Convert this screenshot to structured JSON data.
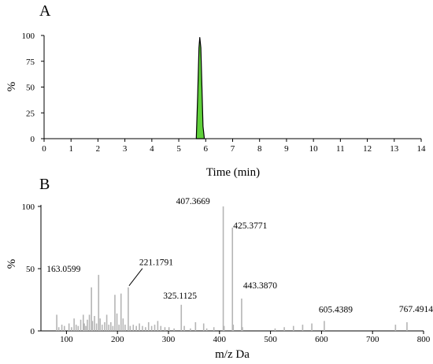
{
  "chart_data": [
    {
      "panel": "A",
      "type": "line",
      "title": "",
      "xlabel": "Time (min)",
      "ylabel": "%",
      "xlim": [
        0,
        14
      ],
      "ylim": [
        0,
        100
      ],
      "xticks": [
        "0",
        "1",
        "2",
        "3",
        "4",
        "5",
        "6",
        "7",
        "8",
        "9",
        "10",
        "11",
        "12",
        "13",
        "14"
      ],
      "yticks": [
        "0",
        "25",
        "50",
        "75",
        "100"
      ],
      "fill_color": "#5fd03a",
      "series": [
        {
          "x": [
            5.65,
            5.7,
            5.75,
            5.78,
            5.82,
            5.86,
            5.9,
            5.95
          ],
          "y": [
            0,
            40,
            88,
            98,
            88,
            50,
            12,
            0
          ]
        }
      ]
    },
    {
      "panel": "B",
      "type": "bar",
      "title": "",
      "xlabel": "m/z Da",
      "ylabel": "%",
      "xlim": [
        50,
        800
      ],
      "ylim": [
        0,
        100
      ],
      "xticks": [
        "100",
        "200",
        "300",
        "400",
        "500",
        "600",
        "700",
        "800"
      ],
      "yticks": [
        "0",
        "50",
        "100"
      ],
      "bar_color": "#b5b5b5",
      "peaks": [
        {
          "mz": 81,
          "intensity": 13
        },
        {
          "mz": 85,
          "intensity": 3
        },
        {
          "mz": 91,
          "intensity": 5
        },
        {
          "mz": 96,
          "intensity": 4
        },
        {
          "mz": 105,
          "intensity": 6
        },
        {
          "mz": 110,
          "intensity": 3
        },
        {
          "mz": 115,
          "intensity": 10
        },
        {
          "mz": 119,
          "intensity": 5
        },
        {
          "mz": 123,
          "intensity": 4
        },
        {
          "mz": 128,
          "intensity": 9
        },
        {
          "mz": 133,
          "intensity": 13
        },
        {
          "mz": 135,
          "intensity": 6
        },
        {
          "mz": 138,
          "intensity": 4
        },
        {
          "mz": 141,
          "intensity": 9
        },
        {
          "mz": 145,
          "intensity": 13
        },
        {
          "mz": 149,
          "intensity": 35
        },
        {
          "mz": 151,
          "intensity": 8
        },
        {
          "mz": 155,
          "intensity": 12
        },
        {
          "mz": 159,
          "intensity": 6
        },
        {
          "mz": 163.0599,
          "intensity": 45
        },
        {
          "mz": 166,
          "intensity": 10
        },
        {
          "mz": 170,
          "intensity": 5
        },
        {
          "mz": 175,
          "intensity": 7
        },
        {
          "mz": 179,
          "intensity": 13
        },
        {
          "mz": 183,
          "intensity": 5
        },
        {
          "mz": 187,
          "intensity": 7
        },
        {
          "mz": 191,
          "intensity": 4
        },
        {
          "mz": 195,
          "intensity": 29
        },
        {
          "mz": 199,
          "intensity": 14
        },
        {
          "mz": 203,
          "intensity": 5
        },
        {
          "mz": 207,
          "intensity": 30
        },
        {
          "mz": 211,
          "intensity": 10
        },
        {
          "mz": 215,
          "intensity": 5
        },
        {
          "mz": 221.1791,
          "intensity": 35
        },
        {
          "mz": 225,
          "intensity": 4
        },
        {
          "mz": 231,
          "intensity": 5
        },
        {
          "mz": 237,
          "intensity": 4
        },
        {
          "mz": 243,
          "intensity": 6
        },
        {
          "mz": 249,
          "intensity": 4
        },
        {
          "mz": 255,
          "intensity": 3
        },
        {
          "mz": 261,
          "intensity": 7
        },
        {
          "mz": 267,
          "intensity": 4
        },
        {
          "mz": 273,
          "intensity": 5
        },
        {
          "mz": 279,
          "intensity": 8
        },
        {
          "mz": 285,
          "intensity": 4
        },
        {
          "mz": 293,
          "intensity": 3
        },
        {
          "mz": 301,
          "intensity": 3
        },
        {
          "mz": 311,
          "intensity": 2
        },
        {
          "mz": 325.1125,
          "intensity": 21
        },
        {
          "mz": 331,
          "intensity": 4
        },
        {
          "mz": 343,
          "intensity": 2
        },
        {
          "mz": 353,
          "intensity": 7
        },
        {
          "mz": 369,
          "intensity": 6
        },
        {
          "mz": 375,
          "intensity": 2
        },
        {
          "mz": 389,
          "intensity": 3
        },
        {
          "mz": 407.3669,
          "intensity": 100
        },
        {
          "mz": 409,
          "intensity": 4
        },
        {
          "mz": 425.3771,
          "intensity": 83
        },
        {
          "mz": 427,
          "intensity": 5
        },
        {
          "mz": 443.387,
          "intensity": 26
        },
        {
          "mz": 445,
          "intensity": 3
        },
        {
          "mz": 509,
          "intensity": 2
        },
        {
          "mz": 527,
          "intensity": 3
        },
        {
          "mz": 545,
          "intensity": 4
        },
        {
          "mz": 563,
          "intensity": 5
        },
        {
          "mz": 581,
          "intensity": 6
        },
        {
          "mz": 605.4389,
          "intensity": 8
        },
        {
          "mz": 745,
          "intensity": 5
        },
        {
          "mz": 767.4914,
          "intensity": 7
        }
      ],
      "annotations": [
        {
          "label": "407.3669",
          "mz": 407.3669
        },
        {
          "label": "425.3771",
          "mz": 425.3771
        },
        {
          "label": "163.0599",
          "mz": 163.0599
        },
        {
          "label": "221.1791",
          "mz": 221.1791
        },
        {
          "label": "325.1125",
          "mz": 325.1125
        },
        {
          "label": "443.3870",
          "mz": 443.387
        },
        {
          "label": "605.4389",
          "mz": 605.4389
        },
        {
          "label": "767.4914",
          "mz": 767.4914
        }
      ]
    }
  ],
  "panels": {
    "a": {
      "letter": "A"
    },
    "b": {
      "letter": "B"
    }
  }
}
